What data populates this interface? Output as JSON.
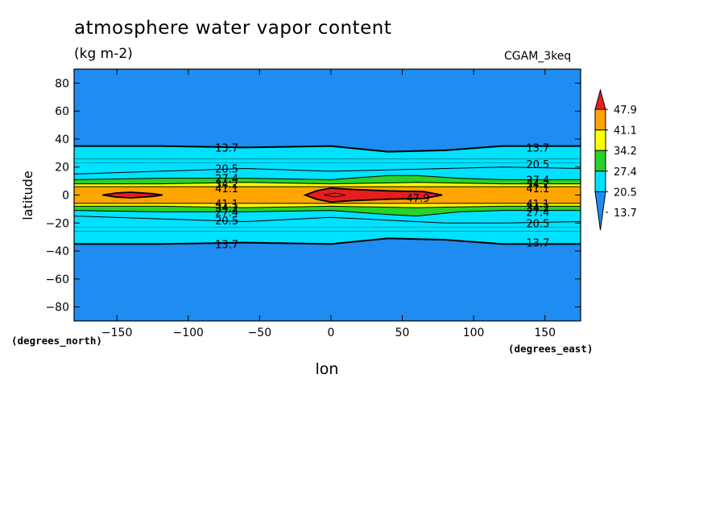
{
  "chart_data": {
    "type": "heatmap",
    "title": "atmosphere water vapor content",
    "subtitle": "(kg m-2)",
    "case_label": "CGAM_3keq",
    "xlabel": "lon",
    "ylabel": "latitude",
    "x_units": "(degrees_east)",
    "y_units": "(degrees_north)",
    "xlim": [
      -180,
      175
    ],
    "ylim": [
      -90,
      90
    ],
    "x_ticks": [
      -150,
      -100,
      -50,
      0,
      50,
      100,
      150
    ],
    "y_ticks": [
      80,
      60,
      40,
      20,
      0,
      -20,
      -40,
      -60,
      -80
    ],
    "contour_levels": [
      13.7,
      20.5,
      27.4,
      34.2,
      41.1,
      47.9
    ],
    "colorbar_colors": [
      "#1E8CF0",
      "#00E1FF",
      "#28D228",
      "#FFFF00",
      "#FFA500",
      "#E61E1E"
    ],
    "colorbar_labels": [
      "47.9",
      "41.1",
      "34.2",
      "27.4",
      "20.5",
      "13.7"
    ],
    "contour_labels": [
      {
        "text": "13.7",
        "lon": -73,
        "lat": 34
      },
      {
        "text": "20.5",
        "lon": -73,
        "lat": 19
      },
      {
        "text": "27.4",
        "lon": -73,
        "lat": 12
      },
      {
        "text": "34.2",
        "lon": -73,
        "lat": 8
      },
      {
        "text": "41.1",
        "lon": -73,
        "lat": 5
      },
      {
        "text": "41.1",
        "lon": -73,
        "lat": -6
      },
      {
        "text": "34.2",
        "lon": -73,
        "lat": -9
      },
      {
        "text": "27.4",
        "lon": -73,
        "lat": -12
      },
      {
        "text": "20.5",
        "lon": -73,
        "lat": -18
      },
      {
        "text": "13.7",
        "lon": -73,
        "lat": -35
      },
      {
        "text": "13.7",
        "lon": 145,
        "lat": 34
      },
      {
        "text": "20.5",
        "lon": 145,
        "lat": 22
      },
      {
        "text": "27.4",
        "lon": 145,
        "lat": 11
      },
      {
        "text": "34.2",
        "lon": 145,
        "lat": 8
      },
      {
        "text": "41.1",
        "lon": 145,
        "lat": 5
      },
      {
        "text": "41.1",
        "lon": 145,
        "lat": -6
      },
      {
        "text": "34.2",
        "lon": 145,
        "lat": -9
      },
      {
        "text": "27.4",
        "lon": 145,
        "lat": -12
      },
      {
        "text": "20.5",
        "lon": 145,
        "lat": -20
      },
      {
        "text": "13.7",
        "lon": 145,
        "lat": -34
      },
      {
        "text": "47.9",
        "lon": 61,
        "lat": -2
      }
    ],
    "bands": [
      {
        "color": "#00E1FF",
        "level": 13.7,
        "north": [
          [
            -180,
            35
          ],
          [
            -120,
            35
          ],
          [
            -60,
            34
          ],
          [
            0,
            35
          ],
          [
            40,
            31
          ],
          [
            80,
            32
          ],
          [
            120,
            35
          ],
          [
            175,
            35
          ]
        ],
        "south": [
          [
            -180,
            -35
          ],
          [
            -120,
            -35
          ],
          [
            -60,
            -34
          ],
          [
            0,
            -35
          ],
          [
            40,
            -31
          ],
          [
            80,
            -32
          ],
          [
            120,
            -35
          ],
          [
            175,
            -35
          ]
        ]
      },
      {
        "color": "#00E1FF",
        "level": 20.5,
        "north": [
          [
            -180,
            15
          ],
          [
            -120,
            17
          ],
          [
            -60,
            19
          ],
          [
            0,
            17
          ],
          [
            40,
            18
          ],
          [
            80,
            19
          ],
          [
            120,
            20
          ],
          [
            175,
            19
          ]
        ],
        "south": [
          [
            -180,
            -15
          ],
          [
            -120,
            -17
          ],
          [
            -60,
            -19
          ],
          [
            0,
            -16
          ],
          [
            40,
            -18
          ],
          [
            80,
            -20
          ],
          [
            120,
            -20
          ],
          [
            175,
            -19
          ]
        ]
      },
      {
        "color": "#28D228",
        "level": 27.4,
        "north": [
          [
            -180,
            11
          ],
          [
            -120,
            12
          ],
          [
            -60,
            12
          ],
          [
            0,
            11
          ],
          [
            40,
            14
          ],
          [
            60,
            14
          ],
          [
            90,
            12
          ],
          [
            120,
            11
          ],
          [
            175,
            11
          ]
        ],
        "south": [
          [
            -180,
            -11
          ],
          [
            -120,
            -12
          ],
          [
            -60,
            -12
          ],
          [
            0,
            -11
          ],
          [
            40,
            -14
          ],
          [
            60,
            -15
          ],
          [
            90,
            -12
          ],
          [
            120,
            -11
          ],
          [
            175,
            -11
          ]
        ]
      },
      {
        "color": "#FFFF00",
        "level": 34.2,
        "north": [
          [
            -180,
            8
          ],
          [
            -120,
            8
          ],
          [
            -60,
            9
          ],
          [
            0,
            8
          ],
          [
            60,
            9
          ],
          [
            120,
            8
          ],
          [
            175,
            8
          ]
        ],
        "south": [
          [
            -180,
            -8
          ],
          [
            -120,
            -8
          ],
          [
            -60,
            -9
          ],
          [
            0,
            -8
          ],
          [
            60,
            -9
          ],
          [
            120,
            -8
          ],
          [
            175,
            -8
          ]
        ]
      },
      {
        "color": "#FFA500",
        "level": 41.1,
        "north": [
          [
            -180,
            6
          ],
          [
            -120,
            6
          ],
          [
            -60,
            6
          ],
          [
            0,
            6
          ],
          [
            60,
            6
          ],
          [
            120,
            6
          ],
          [
            175,
            6
          ]
        ],
        "south": [
          [
            -180,
            -6
          ],
          [
            -120,
            -6
          ],
          [
            -60,
            -6
          ],
          [
            0,
            -6
          ],
          [
            60,
            -6
          ],
          [
            120,
            -6
          ],
          [
            175,
            -6
          ]
        ]
      }
    ],
    "max_regions": [
      {
        "color": "#E61E1E",
        "points": [
          [
            -160,
            0
          ],
          [
            -150,
            1.5
          ],
          [
            -140,
            2
          ],
          [
            -125,
            1
          ],
          [
            -118,
            0
          ],
          [
            -125,
            -1
          ],
          [
            -140,
            -2
          ],
          [
            -150,
            -1.5
          ]
        ]
      },
      {
        "color": "#E61E1E",
        "points": [
          [
            -18,
            0
          ],
          [
            -10,
            3
          ],
          [
            0,
            5
          ],
          [
            15,
            4
          ],
          [
            40,
            3
          ],
          [
            65,
            2.5
          ],
          [
            78,
            0
          ],
          [
            65,
            -2.5
          ],
          [
            40,
            -3
          ],
          [
            15,
            -4
          ],
          [
            0,
            -5
          ],
          [
            -10,
            -3
          ]
        ]
      }
    ],
    "grid": false,
    "legend_placement": "right"
  }
}
